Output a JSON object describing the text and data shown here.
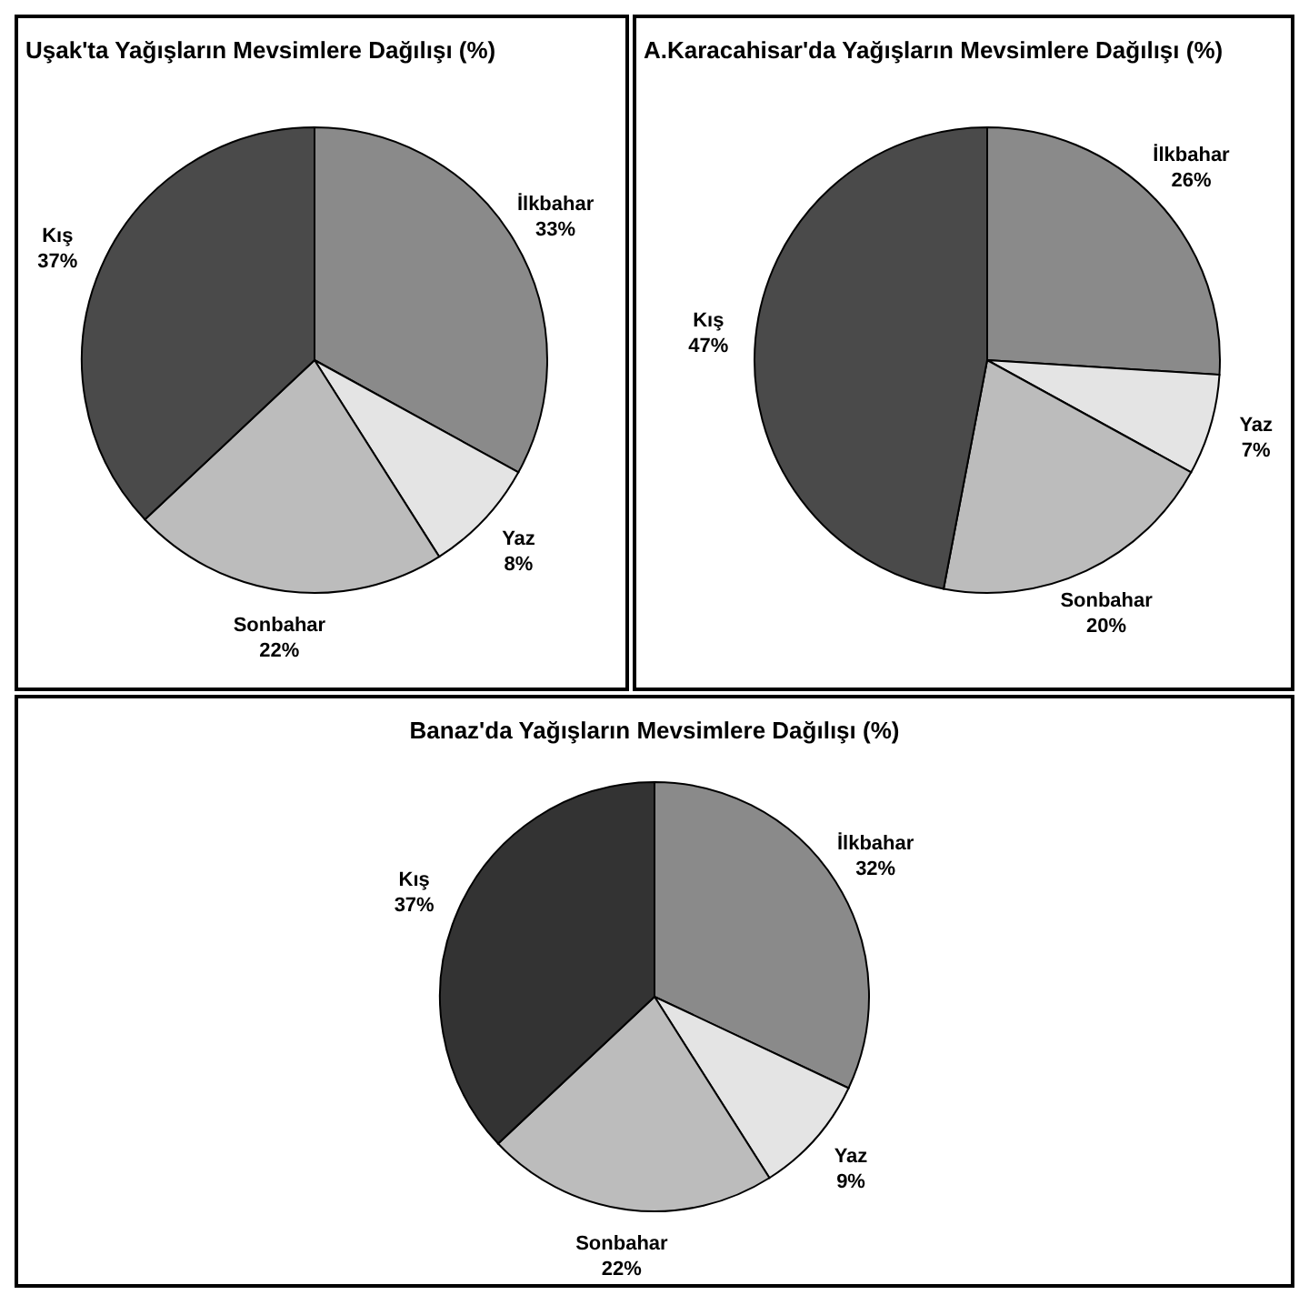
{
  "chart_data": [
    {
      "type": "pie",
      "title": "Uşak'ta Yağışların Mevsimlere Dağılışı (%)",
      "categories": [
        "İlkbahar",
        "Yaz",
        "Sonbahar",
        "Kış"
      ],
      "values": [
        33,
        8,
        22,
        37
      ],
      "value_labels": [
        "33%",
        "8%",
        "22%",
        "37%"
      ],
      "colors": [
        "#8a8a8a",
        "#e4e4e4",
        "#bcbcbc",
        "#4a4a4a"
      ]
    },
    {
      "type": "pie",
      "title": "A.Karacahisar'da Yağışların Mevsimlere Dağılışı (%)",
      "categories": [
        "İlkbahar",
        "Yaz",
        "Sonbahar",
        "Kış"
      ],
      "values": [
        26,
        7,
        20,
        47
      ],
      "value_labels": [
        "26%",
        "7%",
        "20%",
        "47%"
      ],
      "colors": [
        "#8a8a8a",
        "#e4e4e4",
        "#bcbcbc",
        "#4a4a4a"
      ]
    },
    {
      "type": "pie",
      "title": "Banaz'da Yağışların Mevsimlere Dağılışı (%)",
      "categories": [
        "İlkbahar",
        "Yaz",
        "Sonbahar",
        "Kış"
      ],
      "values": [
        32,
        9,
        22,
        37
      ],
      "value_labels": [
        "32%",
        "9%",
        "22%",
        "37%"
      ],
      "colors": [
        "#8a8a8a",
        "#e4e4e4",
        "#bcbcbc",
        "#333333"
      ]
    }
  ]
}
